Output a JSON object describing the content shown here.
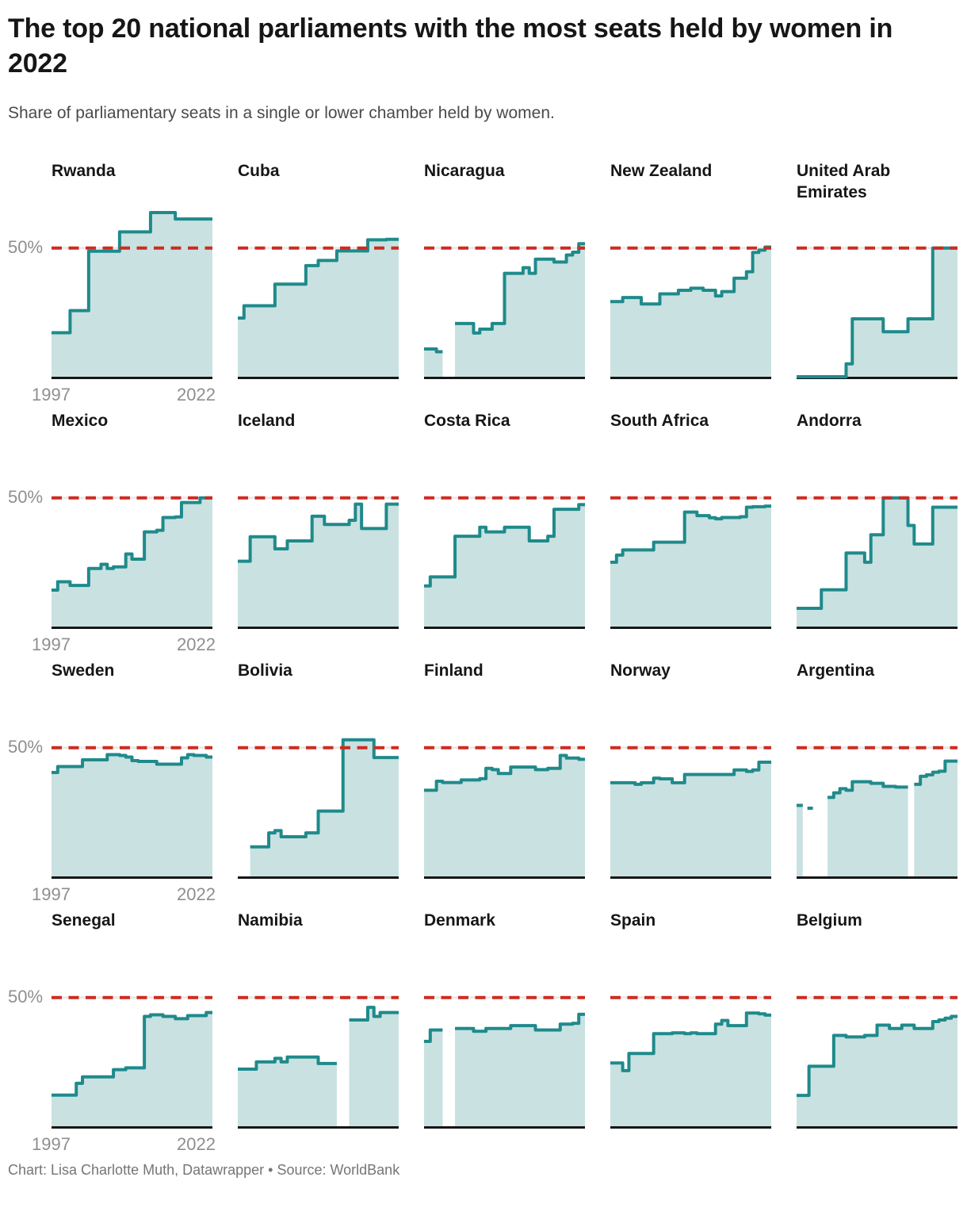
{
  "header": {
    "title": "The top 20 national parliaments with the most seats held by women in 2022",
    "subtitle": "Share of parliamentary seats in a single or lower chamber held by women."
  },
  "axes": {
    "x_first_label": "1997",
    "x_last_label": "2022",
    "ref_label": "50%"
  },
  "footer": {
    "text": "Chart: Lisa Charlotte Muth, Datawrapper • Source: WorldBank"
  },
  "colors": {
    "line": "#1f8a8b",
    "fill": "#c9e1e1",
    "ref_line": "#ce2b20",
    "ref_gridline": "#e9e9e9",
    "baseline": "#161616",
    "label_gray": "#8f8f8f"
  },
  "chart_data": {
    "type": "area",
    "subtype": "step-area small multiples, 4 rows x 5 columns",
    "unit": "%",
    "ylabel": "Share of parliamentary seats held by women",
    "ref_line_value": 50,
    "y_range": [
      0,
      67
    ],
    "grid": "off",
    "x_years": [
      1997,
      1998,
      1999,
      2000,
      2001,
      2002,
      2003,
      2004,
      2005,
      2006,
      2007,
      2008,
      2009,
      2010,
      2011,
      2012,
      2013,
      2014,
      2015,
      2016,
      2017,
      2018,
      2019,
      2020,
      2021,
      2022
    ],
    "series": [
      {
        "name": "Rwanda",
        "values": [
          17.1,
          17.1,
          17.1,
          25.7,
          25.7,
          25.7,
          48.8,
          48.8,
          48.8,
          48.8,
          48.8,
          56.3,
          56.3,
          56.3,
          56.3,
          56.3,
          63.8,
          63.8,
          63.8,
          63.8,
          61.3,
          61.3,
          61.3,
          61.3,
          61.3,
          61.3
        ]
      },
      {
        "name": "Cuba",
        "values": [
          22.8,
          27.6,
          27.6,
          27.6,
          27.6,
          27.6,
          36.0,
          36.0,
          36.0,
          36.0,
          36.0,
          43.2,
          43.2,
          45.2,
          45.2,
          45.2,
          48.9,
          48.9,
          48.9,
          48.9,
          48.9,
          53.2,
          53.2,
          53.2,
          53.4,
          53.4
        ]
      },
      {
        "name": "Nicaragua",
        "values": [
          10.8,
          10.8,
          9.7,
          null,
          null,
          20.7,
          20.7,
          20.7,
          17.0,
          18.5,
          18.5,
          20.7,
          20.7,
          40.2,
          40.2,
          40.2,
          42.4,
          40.2,
          45.7,
          45.7,
          45.7,
          44.6,
          44.6,
          47.3,
          48.4,
          51.7
        ]
      },
      {
        "name": "New Zealand",
        "values": [
          29.2,
          29.2,
          30.8,
          30.8,
          30.8,
          28.3,
          28.3,
          28.3,
          32.2,
          32.2,
          32.2,
          33.6,
          33.6,
          34.4,
          34.4,
          33.6,
          33.6,
          31.4,
          33.1,
          33.1,
          38.3,
          38.3,
          40.8,
          48.3,
          49.2,
          50.4
        ]
      },
      {
        "name": "United Arab Emirates",
        "values": [
          0,
          0,
          0,
          0,
          0,
          0,
          0,
          0,
          5.0,
          22.5,
          22.5,
          22.5,
          22.5,
          22.5,
          17.5,
          17.5,
          17.5,
          17.5,
          22.5,
          22.5,
          22.5,
          22.5,
          50.0,
          50.0,
          50.0,
          50.0
        ]
      },
      {
        "name": "Mexico",
        "values": [
          14.2,
          17.4,
          17.4,
          16.0,
          16.0,
          16.0,
          22.6,
          22.6,
          24.2,
          22.6,
          23.2,
          23.2,
          28.2,
          26.2,
          26.2,
          36.8,
          36.8,
          37.4,
          42.4,
          42.4,
          42.6,
          48.2,
          48.2,
          48.2,
          50.0,
          50.0
        ]
      },
      {
        "name": "Iceland",
        "values": [
          25.4,
          25.4,
          34.9,
          34.9,
          34.9,
          34.9,
          30.2,
          30.2,
          33.3,
          33.3,
          33.3,
          33.3,
          42.9,
          42.9,
          39.7,
          39.7,
          39.7,
          39.7,
          41.3,
          47.6,
          38.1,
          38.1,
          38.1,
          38.1,
          47.6,
          47.6
        ]
      },
      {
        "name": "Costa Rica",
        "values": [
          15.8,
          19.3,
          19.3,
          19.3,
          19.3,
          35.1,
          35.1,
          35.1,
          35.1,
          38.6,
          36.8,
          36.8,
          36.8,
          38.6,
          38.6,
          38.6,
          38.6,
          33.3,
          33.3,
          33.3,
          35.1,
          45.6,
          45.6,
          45.6,
          45.6,
          47.4
        ]
      },
      {
        "name": "South Africa",
        "values": [
          25.0,
          27.8,
          29.8,
          29.8,
          29.8,
          29.8,
          29.8,
          32.8,
          32.8,
          32.8,
          32.8,
          32.8,
          44.5,
          44.5,
          43.1,
          43.1,
          42.3,
          41.9,
          42.4,
          42.4,
          42.4,
          42.7,
          46.4,
          46.6,
          46.6,
          46.8
        ]
      },
      {
        "name": "Andorra",
        "values": [
          7.1,
          7.1,
          7.1,
          7.1,
          14.3,
          14.3,
          14.3,
          14.3,
          28.6,
          28.6,
          28.6,
          25.0,
          35.7,
          35.7,
          50.0,
          50.0,
          50.0,
          50.0,
          39.3,
          32.1,
          32.1,
          32.1,
          46.4,
          46.4,
          46.4,
          46.4
        ]
      },
      {
        "name": "Sweden",
        "values": [
          40.4,
          42.7,
          42.7,
          42.7,
          42.7,
          45.3,
          45.3,
          45.3,
          45.3,
          47.3,
          47.3,
          47.0,
          46.4,
          45.0,
          44.7,
          44.7,
          44.7,
          43.6,
          43.6,
          43.6,
          43.6,
          46.1,
          47.3,
          47.0,
          47.0,
          46.4
        ]
      },
      {
        "name": "Bolivia",
        "values": [
          null,
          null,
          11.5,
          11.5,
          11.5,
          16.9,
          17.8,
          15.4,
          15.4,
          15.4,
          15.4,
          16.9,
          16.9,
          25.4,
          25.4,
          25.4,
          25.4,
          53.1,
          53.1,
          53.1,
          53.1,
          53.1,
          46.2,
          46.2,
          46.2,
          46.2
        ]
      },
      {
        "name": "Finland",
        "values": [
          33.5,
          33.5,
          37.0,
          36.5,
          36.5,
          36.5,
          37.5,
          37.5,
          37.5,
          38.0,
          42.0,
          41.5,
          40.0,
          40.0,
          42.5,
          42.5,
          42.5,
          42.5,
          41.5,
          41.5,
          42.0,
          42.0,
          47.0,
          46.0,
          46.0,
          45.5
        ]
      },
      {
        "name": "Norway",
        "values": [
          36.4,
          36.4,
          36.4,
          36.4,
          35.8,
          36.4,
          36.4,
          38.2,
          37.9,
          37.9,
          36.4,
          36.4,
          39.6,
          39.6,
          39.6,
          39.6,
          39.6,
          39.6,
          39.6,
          39.6,
          41.4,
          41.4,
          40.8,
          41.4,
          44.4,
          44.4
        ]
      },
      {
        "name": "Argentina",
        "values": [
          27.6,
          null,
          26.5,
          null,
          null,
          30.7,
          32.5,
          34.1,
          33.5,
          36.8,
          36.8,
          36.8,
          36.2,
          36.2,
          35.0,
          35.0,
          34.7,
          34.7,
          null,
          35.8,
          38.9,
          39.5,
          40.5,
          40.9,
          44.8,
          44.8
        ]
      },
      {
        "name": "Senegal",
        "values": [
          12.1,
          12.1,
          12.1,
          12.1,
          16.7,
          19.2,
          19.2,
          19.2,
          19.2,
          19.2,
          22.0,
          22.0,
          22.7,
          22.7,
          22.7,
          42.7,
          43.3,
          43.3,
          42.7,
          42.7,
          41.8,
          41.8,
          43.0,
          43.0,
          43.0,
          44.2
        ]
      },
      {
        "name": "Namibia",
        "values": [
          22.2,
          22.2,
          22.2,
          25.0,
          25.0,
          25.0,
          26.4,
          25.0,
          26.9,
          26.9,
          26.9,
          26.9,
          26.9,
          24.4,
          24.4,
          24.4,
          null,
          null,
          41.3,
          41.3,
          41.3,
          46.2,
          42.7,
          44.2,
          44.2,
          44.2
        ]
      },
      {
        "name": "Denmark",
        "values": [
          33.0,
          37.4,
          37.4,
          null,
          null,
          38.0,
          38.0,
          38.0,
          36.9,
          36.9,
          38.0,
          38.0,
          38.0,
          38.0,
          39.1,
          39.1,
          39.1,
          39.1,
          37.4,
          37.4,
          37.4,
          37.4,
          39.7,
          39.7,
          40.0,
          43.5
        ]
      },
      {
        "name": "Spain",
        "values": [
          24.6,
          24.6,
          21.6,
          28.3,
          28.3,
          28.3,
          28.3,
          36.0,
          36.0,
          36.0,
          36.3,
          36.3,
          36.0,
          36.3,
          36.0,
          36.0,
          36.0,
          39.7,
          41.1,
          39.1,
          39.1,
          39.1,
          44.0,
          44.0,
          43.7,
          43.2
        ]
      },
      {
        "name": "Belgium",
        "values": [
          12.0,
          12.0,
          23.3,
          23.3,
          23.3,
          23.3,
          35.3,
          35.3,
          34.7,
          34.7,
          34.7,
          35.3,
          35.3,
          39.3,
          39.3,
          38.0,
          38.0,
          39.3,
          39.3,
          38.0,
          38.0,
          38.0,
          40.7,
          41.3,
          42.0,
          42.7
        ]
      }
    ]
  }
}
